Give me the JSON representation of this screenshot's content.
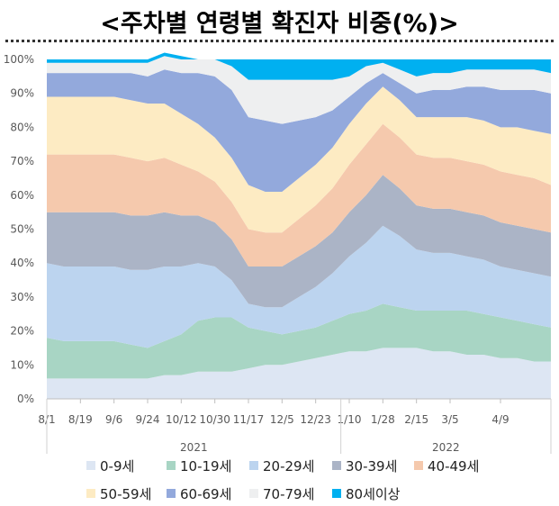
{
  "title": "<주차별 연령별 확진자 비중(%)>",
  "chart_data": {
    "type": "area",
    "stacked": true,
    "normalized_percent": true,
    "ylim": [
      0,
      100
    ],
    "yticks": [
      "0%",
      "10%",
      "20%",
      "30%",
      "40%",
      "50%",
      "60%",
      "70%",
      "80%",
      "90%",
      "100%"
    ],
    "x_tick_labels": [
      "8/1",
      "8/19",
      "9/6",
      "9/24",
      "10/12",
      "10/30",
      "11/17",
      "12/5",
      "12/23",
      "1/10",
      "1/28",
      "2/15",
      "3/5",
      "4/9"
    ],
    "x_group_labels": [
      "2021",
      "2022"
    ],
    "grid": false,
    "legend_position": "bottom",
    "x": [
      "8/1",
      "8/10",
      "8/19",
      "8/28",
      "9/6",
      "9/15",
      "9/24",
      "10/3",
      "10/12",
      "10/21",
      "10/30",
      "11/8",
      "11/17",
      "11/26",
      "12/5",
      "12/14",
      "12/23",
      "1/1",
      "1/10",
      "1/19",
      "1/28",
      "2/6",
      "2/15",
      "2/24",
      "3/5",
      "3/14",
      "3/23",
      "4/1",
      "4/9",
      "4/18",
      "4/27"
    ],
    "series": [
      {
        "name": "0-9세",
        "color": "#dde6f3",
        "values": [
          6,
          6,
          6,
          6,
          6,
          6,
          6,
          7,
          7,
          8,
          8,
          8,
          9,
          10,
          10,
          11,
          12,
          13,
          14,
          14,
          15,
          15,
          15,
          14,
          14,
          13,
          13,
          12,
          12,
          11,
          11
        ]
      },
      {
        "name": "10-19세",
        "color": "#a8d5c4",
        "values": [
          12,
          11,
          11,
          11,
          11,
          10,
          9,
          10,
          12,
          15,
          16,
          16,
          12,
          10,
          9,
          9,
          9,
          10,
          11,
          12,
          13,
          12,
          11,
          12,
          12,
          13,
          12,
          12,
          11,
          11,
          10
        ]
      },
      {
        "name": "20-29세",
        "color": "#bcd4ef",
        "values": [
          22,
          22,
          22,
          22,
          22,
          22,
          23,
          22,
          20,
          17,
          15,
          11,
          7,
          7,
          8,
          10,
          12,
          14,
          17,
          20,
          23,
          21,
          18,
          17,
          17,
          16,
          16,
          15,
          15,
          15,
          15
        ]
      },
      {
        "name": "30-39세",
        "color": "#abb4c6",
        "values": [
          15,
          16,
          16,
          16,
          16,
          16,
          16,
          16,
          15,
          14,
          13,
          12,
          11,
          12,
          12,
          12,
          12,
          12,
          13,
          14,
          15,
          14,
          13,
          13,
          13,
          13,
          13,
          13,
          13,
          13,
          13
        ]
      },
      {
        "name": "40-49세",
        "color": "#f5c9ad",
        "values": [
          17,
          17,
          17,
          17,
          17,
          17,
          16,
          16,
          15,
          13,
          12,
          11,
          11,
          10,
          10,
          11,
          12,
          13,
          14,
          15,
          15,
          15,
          15,
          15,
          15,
          15,
          15,
          15,
          15,
          15,
          14
        ]
      },
      {
        "name": "50-59세",
        "color": "#fdebc3",
        "values": [
          17,
          17,
          17,
          17,
          17,
          17,
          17,
          16,
          15,
          14,
          13,
          13,
          13,
          12,
          12,
          12,
          12,
          12,
          12,
          12,
          11,
          11,
          11,
          12,
          12,
          13,
          13,
          13,
          14,
          14,
          15
        ]
      },
      {
        "name": "60-69세",
        "color": "#93a9dc",
        "values": [
          7,
          7,
          7,
          7,
          7,
          8,
          8,
          10,
          12,
          15,
          18,
          20,
          20,
          21,
          20,
          17,
          14,
          11,
          8,
          6,
          4,
          5,
          7,
          8,
          8,
          9,
          10,
          11,
          11,
          12,
          12
        ]
      },
      {
        "name": "70-79세",
        "color": "#eeeff0",
        "values": [
          3,
          3,
          3,
          3,
          3,
          3,
          4,
          4,
          4,
          4,
          5,
          7,
          11,
          12,
          13,
          12,
          11,
          9,
          6,
          5,
          3,
          4,
          5,
          5,
          5,
          5,
          5,
          6,
          6,
          6,
          6
        ]
      },
      {
        "name": "80세이상",
        "color": "#00b0f0",
        "values": [
          1,
          1,
          1,
          1,
          1,
          1,
          1,
          1,
          1,
          0,
          0,
          2,
          6,
          6,
          6,
          6,
          6,
          6,
          5,
          2,
          1,
          3,
          5,
          4,
          4,
          3,
          3,
          3,
          3,
          3,
          4
        ]
      }
    ]
  }
}
